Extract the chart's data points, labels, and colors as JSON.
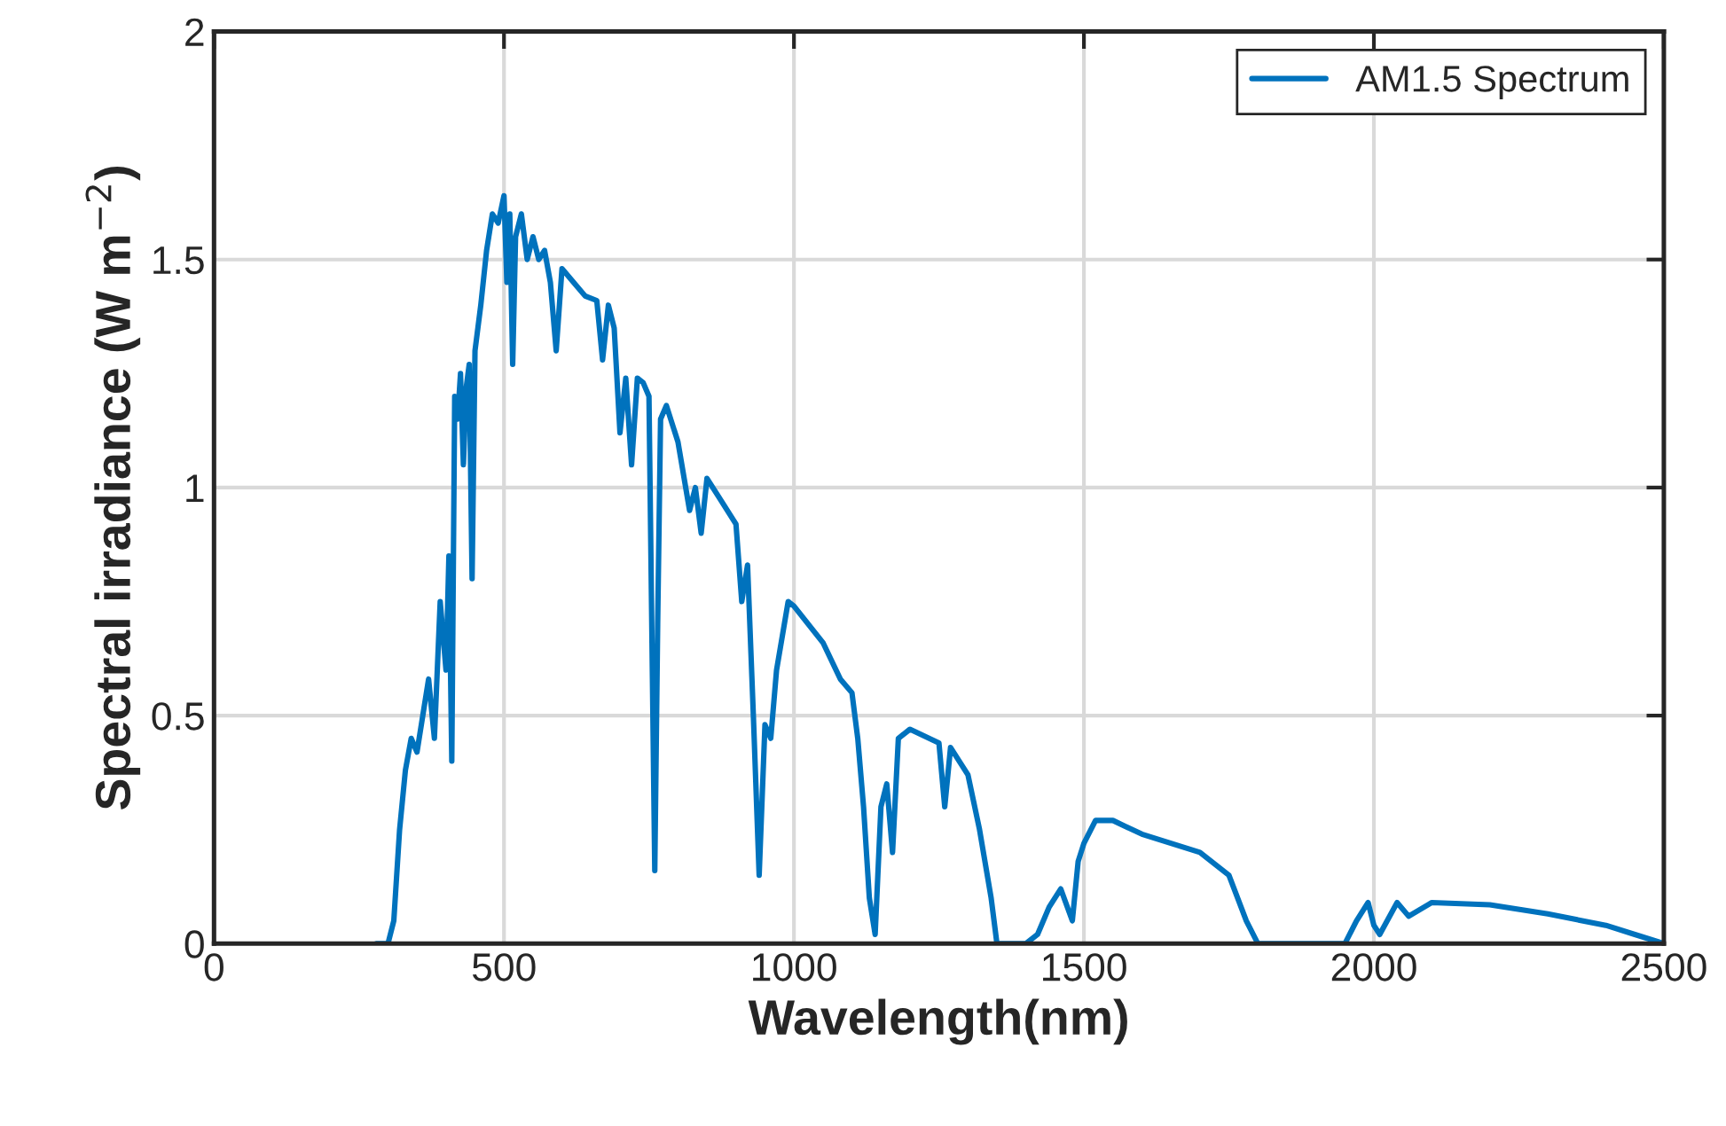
{
  "chart_data": {
    "type": "line",
    "xlabel": "Wavelength(nm)",
    "ylabel": "Spectral irradiance (W m$^{−2}$)",
    "xlim": [
      0,
      2500
    ],
    "ylim": [
      0,
      2
    ],
    "xticks": [
      0,
      500,
      1000,
      1500,
      2000,
      2500
    ],
    "yticks": [
      0,
      0.5,
      1,
      1.5,
      2
    ],
    "grid": true,
    "legend": "top right",
    "marker": "none",
    "line_style": "solid",
    "series": [
      {
        "name": "AM1.5 Spectrum",
        "color": "#0072bd",
        "x": [
          280,
          300,
          310,
          320,
          330,
          340,
          350,
          360,
          370,
          380,
          390,
          400,
          405,
          410,
          415,
          420,
          425,
          430,
          435,
          440,
          445,
          450,
          460,
          470,
          480,
          490,
          500,
          505,
          510,
          515,
          520,
          530,
          540,
          550,
          560,
          570,
          580,
          590,
          600,
          620,
          640,
          660,
          670,
          680,
          690,
          700,
          710,
          720,
          730,
          740,
          750,
          760,
          765,
          770,
          780,
          800,
          820,
          830,
          840,
          850,
          870,
          900,
          910,
          920,
          930,
          940,
          950,
          960,
          970,
          990,
          1000,
          1050,
          1080,
          1100,
          1110,
          1120,
          1130,
          1140,
          1150,
          1160,
          1170,
          1180,
          1200,
          1250,
          1260,
          1270,
          1300,
          1320,
          1340,
          1350,
          1400,
          1420,
          1440,
          1460,
          1480,
          1490,
          1500,
          1520,
          1550,
          1600,
          1650,
          1700,
          1750,
          1780,
          1800,
          1950,
          1970,
          1990,
          2000,
          2010,
          2040,
          2060,
          2100,
          2200,
          2300,
          2400,
          2450,
          2500
        ],
        "values": [
          0,
          0,
          0.05,
          0.25,
          0.38,
          0.45,
          0.42,
          0.5,
          0.58,
          0.45,
          0.75,
          0.6,
          0.85,
          0.4,
          1.2,
          1.15,
          1.25,
          1.05,
          1.22,
          1.27,
          0.8,
          1.3,
          1.4,
          1.52,
          1.6,
          1.58,
          1.64,
          1.45,
          1.6,
          1.27,
          1.55,
          1.6,
          1.5,
          1.55,
          1.5,
          1.52,
          1.45,
          1.3,
          1.48,
          1.45,
          1.42,
          1.41,
          1.28,
          1.4,
          1.35,
          1.12,
          1.24,
          1.05,
          1.24,
          1.23,
          1.2,
          0.16,
          0.7,
          1.15,
          1.18,
          1.1,
          0.95,
          1.0,
          0.9,
          1.02,
          0.98,
          0.92,
          0.75,
          0.83,
          0.5,
          0.15,
          0.48,
          0.45,
          0.6,
          0.75,
          0.74,
          0.66,
          0.58,
          0.55,
          0.45,
          0.3,
          0.1,
          0.02,
          0.3,
          0.35,
          0.2,
          0.45,
          0.47,
          0.44,
          0.3,
          0.43,
          0.37,
          0.25,
          0.1,
          0,
          0,
          0.02,
          0.08,
          0.12,
          0.05,
          0.18,
          0.22,
          0.27,
          0.27,
          0.24,
          0.22,
          0.2,
          0.15,
          0.05,
          0,
          0,
          0.05,
          0.09,
          0.04,
          0.02,
          0.09,
          0.06,
          0.09,
          0.085,
          0.065,
          0.04,
          0.02,
          0
        ]
      }
    ]
  }
}
